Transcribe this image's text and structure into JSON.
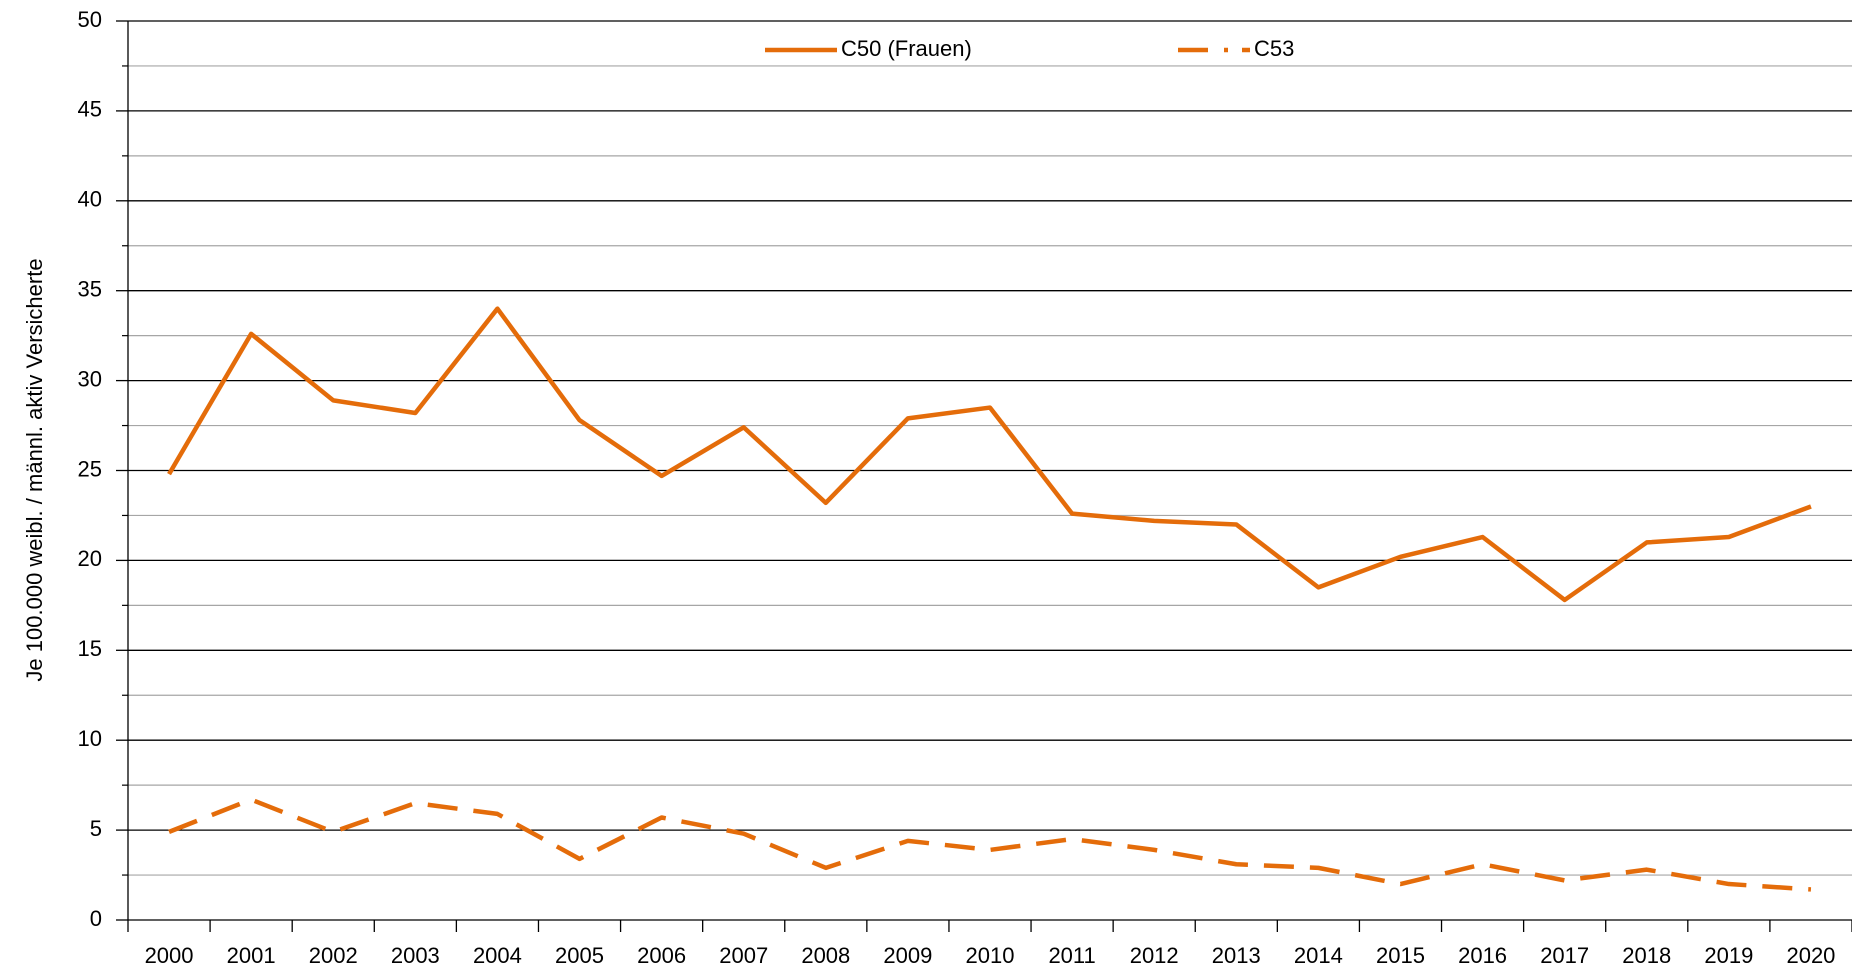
{
  "chart_data": {
    "type": "line",
    "y_label": "Je 100.000 weibl. / männl. aktiv Versicherte",
    "categories": [
      "2000",
      "2001",
      "2002",
      "2003",
      "2004",
      "2005",
      "2006",
      "2007",
      "2008",
      "2009",
      "2010",
      "2011",
      "2012",
      "2013",
      "2014",
      "2015",
      "2016",
      "2017",
      "2018",
      "2019",
      "2020"
    ],
    "series": [
      {
        "name": "C50 (Frauen)",
        "color": "#e46c0a",
        "dash": false,
        "values": [
          24.8,
          32.6,
          28.9,
          28.2,
          34.0,
          27.8,
          24.7,
          27.4,
          23.2,
          27.9,
          28.5,
          22.6,
          22.2,
          22.0,
          18.5,
          20.2,
          21.3,
          17.8,
          21.0,
          21.3,
          23.0
        ]
      },
      {
        "name": "C53",
        "color": "#e46c0a",
        "dash": true,
        "values": [
          4.9,
          6.7,
          4.9,
          6.5,
          5.9,
          3.4,
          5.7,
          4.8,
          2.9,
          4.4,
          3.9,
          4.5,
          3.9,
          3.1,
          2.9,
          2.0,
          3.1,
          2.2,
          2.8,
          2.0,
          1.7
        ]
      }
    ],
    "ylim": [
      0,
      50
    ],
    "yticks": [
      0,
      5,
      10,
      15,
      20,
      25,
      30,
      35,
      40,
      45,
      50
    ],
    "grid": true,
    "minor_grid": true,
    "legend": "top"
  }
}
